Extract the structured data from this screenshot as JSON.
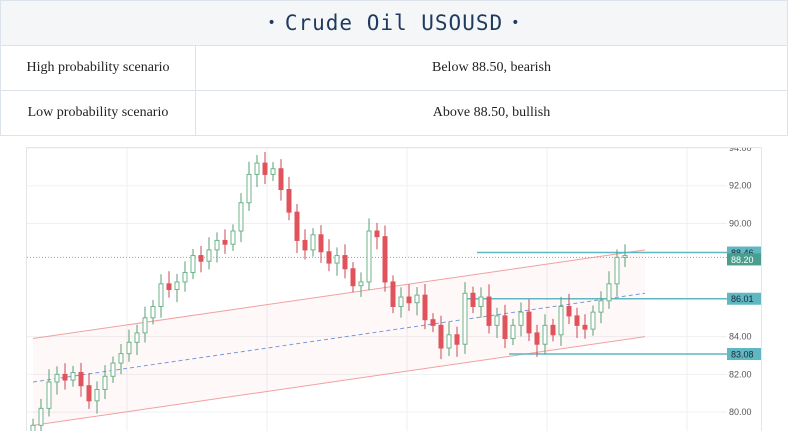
{
  "header": {
    "title": "Crude Oil USOUSD",
    "bullet": "•"
  },
  "scenarios": [
    {
      "label": "High probability scenario",
      "value": "Below 88.50, bearish"
    },
    {
      "label": "Low probability scenario",
      "value": "Above 88.50, bullish"
    }
  ],
  "chart_data": {
    "type": "candlestick",
    "y_ticks": [
      "94.00",
      "92.00",
      "90.00",
      "84.00",
      "82.00",
      "80.00"
    ],
    "ylim": [
      79.0,
      94.0
    ],
    "current_price": 88.2,
    "levels": [
      {
        "label": "88.46",
        "value": 88.46,
        "color": "#5fb7c2"
      },
      {
        "label": "86.01",
        "value": 86.01,
        "color": "#5fb7c2"
      },
      {
        "label": "83.08",
        "value": 83.08,
        "color": "#5fb7c2"
      }
    ],
    "current_tag": {
      "label": "88.20",
      "color": "#4a9e8e"
    },
    "channel": {
      "upper": [
        [
          0,
          83.9
        ],
        [
          100,
          88.6
        ]
      ],
      "middle": [
        [
          0,
          81.6
        ],
        [
          100,
          86.3
        ]
      ],
      "lower": [
        [
          0,
          79.3
        ],
        [
          100,
          84.0
        ]
      ]
    },
    "closes": [
      79.3,
      80.2,
      81.6,
      82.0,
      81.7,
      82.1,
      81.4,
      80.6,
      81.2,
      81.9,
      82.6,
      83.1,
      83.7,
      84.2,
      85.0,
      85.6,
      86.8,
      86.5,
      86.9,
      87.4,
      88.3,
      88.0,
      88.6,
      89.1,
      88.9,
      89.6,
      91.1,
      92.6,
      93.2,
      92.6,
      92.9,
      91.8,
      90.6,
      89.1,
      88.6,
      89.4,
      88.5,
      87.9,
      88.3,
      87.6,
      86.7,
      86.9,
      89.6,
      89.3,
      86.9,
      85.6,
      86.1,
      85.8,
      86.2,
      84.9,
      84.6,
      83.4,
      84.1,
      83.6,
      86.3,
      85.6,
      86.1,
      84.6,
      85.1,
      83.9,
      84.6,
      85.3,
      84.2,
      83.6,
      84.6,
      84.1,
      85.6,
      85.1,
      84.6,
      84.4,
      85.3,
      85.9,
      86.8,
      88.2,
      88.3
    ]
  }
}
